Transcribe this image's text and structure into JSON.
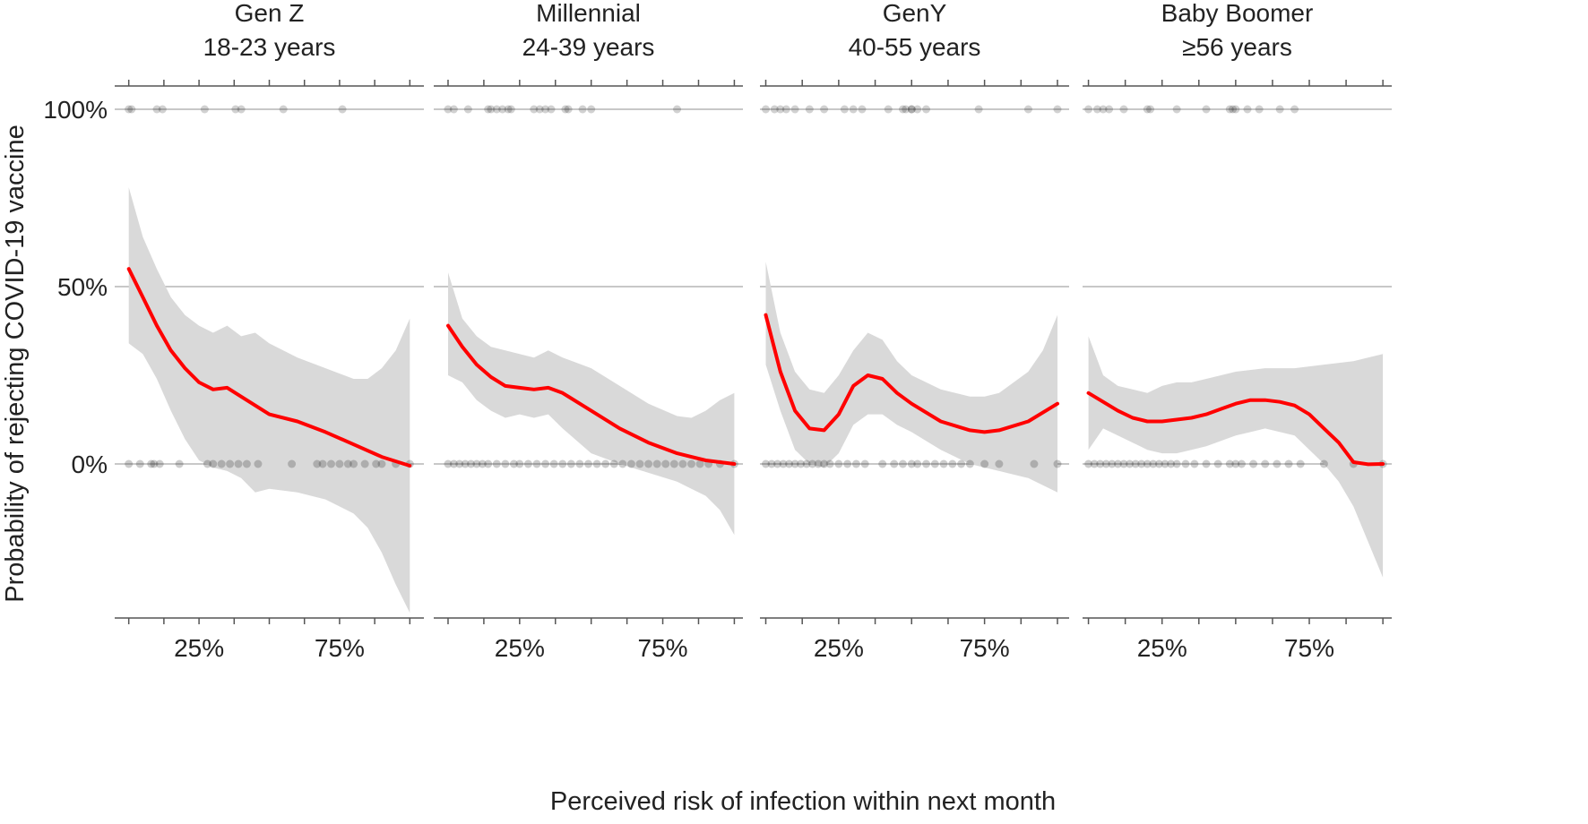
{
  "chart_data": {
    "type": "line",
    "ylabel": "Probability of rejecting COVID-19 vaccine",
    "xlabel": "Perceived risk of infection within next month",
    "ylim": [
      -0.45,
      1.07
    ],
    "y_ticks": [
      {
        "value": 1.0,
        "label": "100%"
      },
      {
        "value": 0.5,
        "label": "50%"
      },
      {
        "value": 0.0,
        "label": "0%"
      }
    ],
    "x_major_ticks": [
      {
        "value": 0.25,
        "label": "25%"
      },
      {
        "value": 0.75,
        "label": "75%"
      }
    ],
    "x_minor_tick_values": [
      0,
      0.125,
      0.25,
      0.375,
      0.5,
      0.625,
      0.75,
      0.875,
      1.0
    ],
    "colors": {
      "trend": "#ff0000",
      "band": "#d9d9d9",
      "points": "#000000",
      "grid": "#c8c8c8",
      "axis": "#555555"
    },
    "panels": [
      {
        "title": "Gen Z",
        "subtitle": "18-23 years",
        "xlim": [
          -0.05,
          1.05
        ],
        "trend": {
          "x": [
            0,
            0.05,
            0.1,
            0.15,
            0.2,
            0.25,
            0.3,
            0.35,
            0.4,
            0.5,
            0.6,
            0.7,
            0.8,
            0.9,
            1.0
          ],
          "y": [
            0.55,
            0.47,
            0.39,
            0.32,
            0.27,
            0.23,
            0.21,
            0.215,
            0.19,
            0.14,
            0.12,
            0.09,
            0.055,
            0.02,
            -0.005
          ]
        },
        "band_upper": {
          "x": [
            0,
            0.05,
            0.1,
            0.15,
            0.2,
            0.25,
            0.3,
            0.35,
            0.4,
            0.45,
            0.5,
            0.6,
            0.7,
            0.8,
            0.85,
            0.9,
            0.95,
            1.0
          ],
          "y": [
            0.78,
            0.64,
            0.55,
            0.47,
            0.42,
            0.39,
            0.37,
            0.39,
            0.36,
            0.37,
            0.34,
            0.3,
            0.27,
            0.24,
            0.24,
            0.27,
            0.32,
            0.41
          ]
        },
        "band_lower": {
          "x": [
            0,
            0.05,
            0.1,
            0.15,
            0.2,
            0.25,
            0.3,
            0.35,
            0.4,
            0.45,
            0.5,
            0.6,
            0.7,
            0.8,
            0.85,
            0.9,
            0.95,
            1.0
          ],
          "y": [
            0.34,
            0.31,
            0.24,
            0.15,
            0.07,
            0.01,
            -0.01,
            -0.02,
            -0.04,
            -0.08,
            -0.07,
            -0.08,
            -0.1,
            -0.14,
            -0.18,
            -0.25,
            -0.34,
            -0.42
          ]
        },
        "points_top": [
          0,
          0.01,
          0.1,
          0.12,
          0.27,
          0.38,
          0.4,
          0.55,
          0.76
        ],
        "points_bottom": [
          0,
          0.04,
          0.08,
          0.09,
          0.11,
          0.18,
          0.28,
          0.3,
          0.33,
          0.36,
          0.39,
          0.42,
          0.46,
          0.58,
          0.67,
          0.69,
          0.72,
          0.75,
          0.78,
          0.8,
          0.84,
          0.88,
          0.9,
          0.95,
          1.0
        ]
      },
      {
        "title": "Millennial",
        "subtitle": "24-39 years",
        "xlim": [
          -0.05,
          1.03
        ],
        "trend": {
          "x": [
            0,
            0.05,
            0.1,
            0.15,
            0.2,
            0.25,
            0.3,
            0.35,
            0.4,
            0.5,
            0.6,
            0.7,
            0.8,
            0.9,
            1.0
          ],
          "y": [
            0.39,
            0.33,
            0.28,
            0.245,
            0.22,
            0.215,
            0.21,
            0.215,
            0.2,
            0.15,
            0.1,
            0.06,
            0.03,
            0.01,
            0.0
          ]
        },
        "band_upper": {
          "x": [
            0,
            0.05,
            0.1,
            0.15,
            0.2,
            0.25,
            0.3,
            0.35,
            0.4,
            0.5,
            0.6,
            0.7,
            0.8,
            0.85,
            0.9,
            0.95,
            1.0
          ],
          "y": [
            0.54,
            0.41,
            0.36,
            0.33,
            0.32,
            0.31,
            0.3,
            0.32,
            0.3,
            0.27,
            0.22,
            0.17,
            0.135,
            0.13,
            0.15,
            0.18,
            0.2
          ]
        },
        "band_lower": {
          "x": [
            0,
            0.05,
            0.1,
            0.15,
            0.2,
            0.25,
            0.3,
            0.35,
            0.4,
            0.5,
            0.6,
            0.7,
            0.8,
            0.85,
            0.9,
            0.95,
            1.0
          ],
          "y": [
            0.25,
            0.23,
            0.18,
            0.15,
            0.13,
            0.14,
            0.13,
            0.14,
            0.1,
            0.03,
            0.0,
            -0.025,
            -0.05,
            -0.07,
            -0.09,
            -0.13,
            -0.2
          ]
        },
        "points_top": [
          0,
          0.02,
          0.07,
          0.14,
          0.15,
          0.17,
          0.19,
          0.21,
          0.22,
          0.3,
          0.32,
          0.34,
          0.36,
          0.41,
          0.42,
          0.47,
          0.5,
          0.8
        ],
        "points_bottom": [
          0,
          0.02,
          0.04,
          0.06,
          0.08,
          0.1,
          0.12,
          0.14,
          0.17,
          0.2,
          0.23,
          0.25,
          0.28,
          0.31,
          0.34,
          0.37,
          0.4,
          0.43,
          0.46,
          0.49,
          0.52,
          0.55,
          0.58,
          0.61,
          0.64,
          0.67,
          0.7,
          0.73,
          0.76,
          0.79,
          0.82,
          0.85,
          0.88,
          0.91,
          0.95,
          1.0
        ]
      },
      {
        "title": "GenY",
        "subtitle": "40-55 years",
        "xlim": [
          -0.02,
          1.04
        ],
        "trend": {
          "x": [
            0,
            0.05,
            0.1,
            0.15,
            0.2,
            0.25,
            0.3,
            0.35,
            0.4,
            0.45,
            0.5,
            0.6,
            0.7,
            0.75,
            0.8,
            0.9,
            1.0
          ],
          "y": [
            0.42,
            0.26,
            0.15,
            0.1,
            0.095,
            0.14,
            0.22,
            0.25,
            0.24,
            0.2,
            0.17,
            0.12,
            0.095,
            0.09,
            0.095,
            0.12,
            0.17
          ]
        },
        "band_upper": {
          "x": [
            0,
            0.05,
            0.1,
            0.15,
            0.2,
            0.25,
            0.3,
            0.35,
            0.4,
            0.45,
            0.5,
            0.6,
            0.7,
            0.75,
            0.8,
            0.9,
            0.95,
            1.0
          ],
          "y": [
            0.57,
            0.37,
            0.26,
            0.21,
            0.2,
            0.25,
            0.32,
            0.37,
            0.35,
            0.29,
            0.25,
            0.21,
            0.19,
            0.19,
            0.2,
            0.26,
            0.32,
            0.42
          ]
        },
        "band_lower": {
          "x": [
            0,
            0.05,
            0.1,
            0.15,
            0.2,
            0.25,
            0.3,
            0.35,
            0.4,
            0.45,
            0.5,
            0.6,
            0.7,
            0.75,
            0.8,
            0.9,
            0.95,
            1.0
          ],
          "y": [
            0.28,
            0.15,
            0.04,
            0.0,
            -0.01,
            0.03,
            0.11,
            0.14,
            0.14,
            0.11,
            0.09,
            0.04,
            0.0,
            -0.01,
            -0.02,
            -0.04,
            -0.06,
            -0.08
          ]
        },
        "points_top": [
          0,
          0.03,
          0.05,
          0.07,
          0.1,
          0.15,
          0.2,
          0.27,
          0.3,
          0.33,
          0.42,
          0.47,
          0.48,
          0.5,
          0.5,
          0.52,
          0.55,
          0.73,
          0.9,
          1.0
        ],
        "points_bottom": [
          0,
          0.02,
          0.04,
          0.06,
          0.08,
          0.1,
          0.12,
          0.14,
          0.16,
          0.18,
          0.2,
          0.22,
          0.25,
          0.28,
          0.31,
          0.34,
          0.4,
          0.44,
          0.47,
          0.5,
          0.52,
          0.55,
          0.58,
          0.61,
          0.64,
          0.67,
          0.7,
          0.75,
          0.8,
          0.92,
          1.0
        ]
      },
      {
        "title": "Baby Boomer",
        "subtitle": "≥56 years",
        "xlim": [
          -0.02,
          1.03
        ],
        "trend": {
          "x": [
            0,
            0.05,
            0.1,
            0.15,
            0.2,
            0.25,
            0.3,
            0.35,
            0.4,
            0.45,
            0.5,
            0.55,
            0.6,
            0.65,
            0.7,
            0.75,
            0.8,
            0.85,
            0.9,
            0.95,
            1.0
          ],
          "y": [
            0.2,
            0.175,
            0.15,
            0.13,
            0.12,
            0.12,
            0.125,
            0.13,
            0.14,
            0.155,
            0.17,
            0.18,
            0.18,
            0.175,
            0.165,
            0.14,
            0.1,
            0.06,
            0.005,
            -0.001,
            0.0
          ]
        },
        "band_upper": {
          "x": [
            0,
            0.05,
            0.1,
            0.15,
            0.2,
            0.25,
            0.3,
            0.35,
            0.4,
            0.5,
            0.6,
            0.7,
            0.8,
            0.9,
            1.0
          ],
          "y": [
            0.36,
            0.25,
            0.22,
            0.21,
            0.2,
            0.22,
            0.23,
            0.23,
            0.24,
            0.26,
            0.27,
            0.27,
            0.28,
            0.29,
            0.31
          ]
        },
        "band_lower": {
          "x": [
            0,
            0.05,
            0.1,
            0.15,
            0.2,
            0.25,
            0.3,
            0.35,
            0.4,
            0.5,
            0.6,
            0.7,
            0.8,
            0.85,
            0.9,
            0.95,
            1.0
          ],
          "y": [
            0.04,
            0.1,
            0.08,
            0.06,
            0.04,
            0.03,
            0.03,
            0.04,
            0.05,
            0.08,
            0.1,
            0.08,
            0.0,
            -0.05,
            -0.12,
            -0.22,
            -0.32
          ]
        },
        "points_top": [
          0,
          0.03,
          0.05,
          0.07,
          0.12,
          0.2,
          0.21,
          0.3,
          0.4,
          0.48,
          0.49,
          0.5,
          0.54,
          0.58,
          0.65,
          0.7
        ],
        "points_bottom": [
          0,
          0.02,
          0.04,
          0.06,
          0.08,
          0.1,
          0.12,
          0.14,
          0.16,
          0.18,
          0.2,
          0.22,
          0.24,
          0.26,
          0.28,
          0.3,
          0.33,
          0.36,
          0.4,
          0.44,
          0.48,
          0.5,
          0.52,
          0.56,
          0.6,
          0.64,
          0.68,
          0.72,
          0.8,
          0.9,
          1.0
        ]
      }
    ]
  }
}
